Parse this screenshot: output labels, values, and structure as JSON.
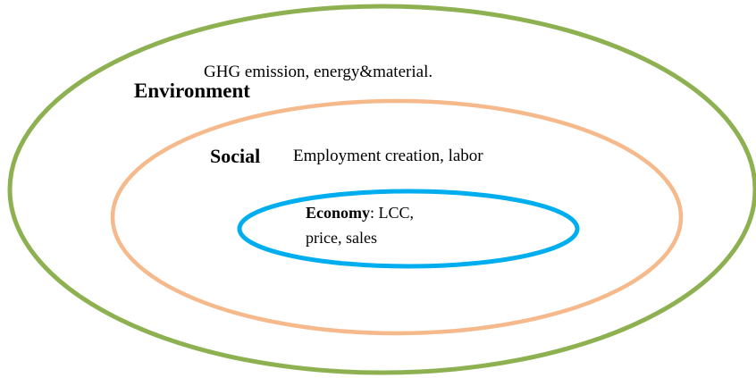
{
  "layers": [
    {
      "label": "Environment",
      "description": "GHG emission, energy&material."
    },
    {
      "label": "Social",
      "description": "Employment creation, labor"
    },
    {
      "label": "Economy",
      "description": [
        ": LCC,",
        "price, sales"
      ]
    }
  ]
}
